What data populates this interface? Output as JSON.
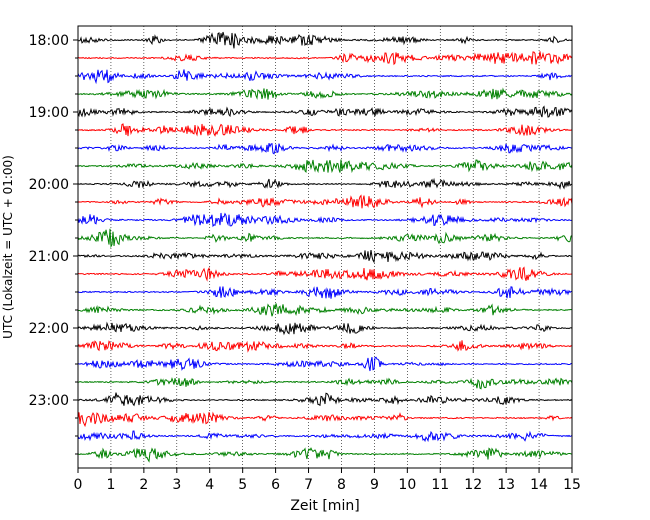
{
  "chart_data": {
    "type": "line",
    "xlabel": "Zeit  [min]",
    "ylabel": "UTC (Lokalzeit = UTC + 01:00)",
    "xlim": [
      0,
      15
    ],
    "x_ticks": [
      "0",
      "1",
      "2",
      "3",
      "4",
      "5",
      "6",
      "7",
      "8",
      "9",
      "10",
      "11",
      "12",
      "13",
      "14",
      "15"
    ],
    "y_tick_labels": [
      "18:00",
      "19:00",
      "20:00",
      "21:00",
      "22:00",
      "23:00"
    ],
    "grid": "vertical-dotted",
    "trace_colors": [
      "#000000",
      "#ff0000",
      "#0000ff",
      "#008000"
    ],
    "traces_start": "18:00",
    "trace_interval_minutes": 15,
    "trace_count": 24
  }
}
